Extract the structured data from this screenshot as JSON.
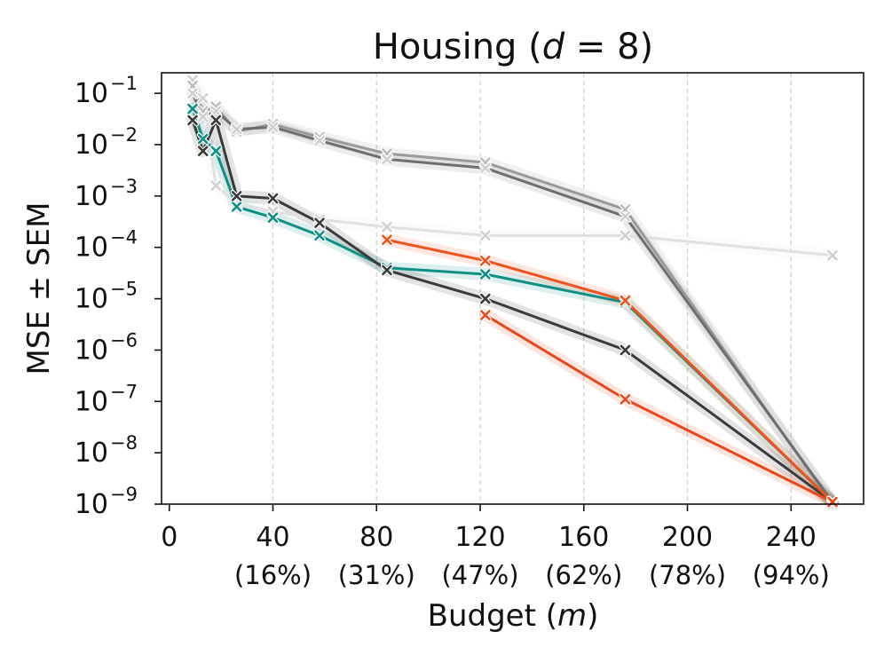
{
  "chart_data": {
    "type": "line",
    "title": "Housing (",
    "title_var": "d",
    "title_rest": " = 8)",
    "xlabel": "Budget (",
    "xlabel_var": "m",
    "xlabel_rest": ")",
    "ylabel": "MSE ± SEM",
    "yscale": "log",
    "xlim": [
      -3,
      268
    ],
    "ylim_exp": [
      -9,
      -0.6
    ],
    "xticks": [
      0,
      40,
      80,
      120,
      160,
      200,
      240
    ],
    "xtick_labels": [
      "0",
      "40",
      "80",
      "120",
      "160",
      "200",
      "240"
    ],
    "xtick_pct": [
      "",
      "(16%)",
      "(31%)",
      "(47%)",
      "(62%)",
      "(78%)",
      "(94%)"
    ],
    "ytick_exps": [
      -1,
      -2,
      -3,
      -4,
      -5,
      -6,
      -7,
      -8,
      -9
    ],
    "ytick_base": "10",
    "ytick_exp_labels": [
      "−1",
      "−2",
      "−3",
      "−4",
      "−5",
      "−6",
      "−7",
      "−8",
      "−9"
    ],
    "vgrid": true,
    "series": [
      {
        "name": "light-gray",
        "color": "#e0e0e0",
        "marker_color": "#d0d0d0",
        "x": [
          9,
          13,
          18,
          26,
          40,
          58,
          84,
          122,
          176,
          256
        ],
        "y": [
          0.18,
          0.08,
          0.0016,
          0.0007,
          0.0005,
          0.00035,
          0.00025,
          0.00017,
          0.00017,
          7e-05
        ]
      },
      {
        "name": "mid-gray",
        "color": "#9a9a9a",
        "marker_color": "#bdbdbd",
        "x": [
          9,
          13,
          18,
          26,
          40,
          58,
          84,
          122,
          176,
          256
        ],
        "y": [
          0.14,
          0.045,
          0.055,
          0.018,
          0.025,
          0.014,
          0.0067,
          0.0045,
          0.00055,
          1e-09
        ]
      },
      {
        "name": "gray",
        "color": "#6e6e6e",
        "marker_color": "#cfcfcf",
        "x": [
          9,
          13,
          18,
          26,
          40,
          58,
          84,
          122,
          176,
          256
        ],
        "y": [
          0.1,
          0.035,
          0.045,
          0.02,
          0.022,
          0.012,
          0.0052,
          0.0035,
          0.0004,
          1.1e-09
        ]
      },
      {
        "name": "teal",
        "color": "#0f8f86",
        "marker_color": "#0f8f86",
        "x": [
          9,
          13,
          18,
          26,
          40,
          58,
          84,
          122,
          176,
          256
        ],
        "y": [
          0.05,
          0.013,
          0.0075,
          0.00062,
          0.00038,
          0.00017,
          4e-05,
          3e-05,
          8.5e-06,
          1.1e-09
        ]
      },
      {
        "name": "dark-gray",
        "color": "#3a3a3a",
        "marker_color": "#3a3a3a",
        "x": [
          9,
          13,
          18,
          26,
          40,
          58,
          84,
          122,
          176,
          256
        ],
        "y": [
          0.03,
          0.0075,
          0.03,
          0.001,
          0.0009,
          0.0003,
          3.6e-05,
          1e-05,
          1e-06,
          1.1e-09
        ]
      },
      {
        "name": "orange-upper",
        "color": "#f0521d",
        "marker_color": "#f0521d",
        "x": [
          84,
          122,
          176,
          256
        ],
        "y": [
          0.00014,
          5.5e-05,
          9.2e-06,
          1.1e-09
        ]
      },
      {
        "name": "orange-lower",
        "color": "#e9461a",
        "marker_color": "#e9461a",
        "x": [
          122,
          176,
          256
        ],
        "y": [
          4.8e-06,
          1.1e-07,
          1.1e-09
        ]
      }
    ]
  }
}
